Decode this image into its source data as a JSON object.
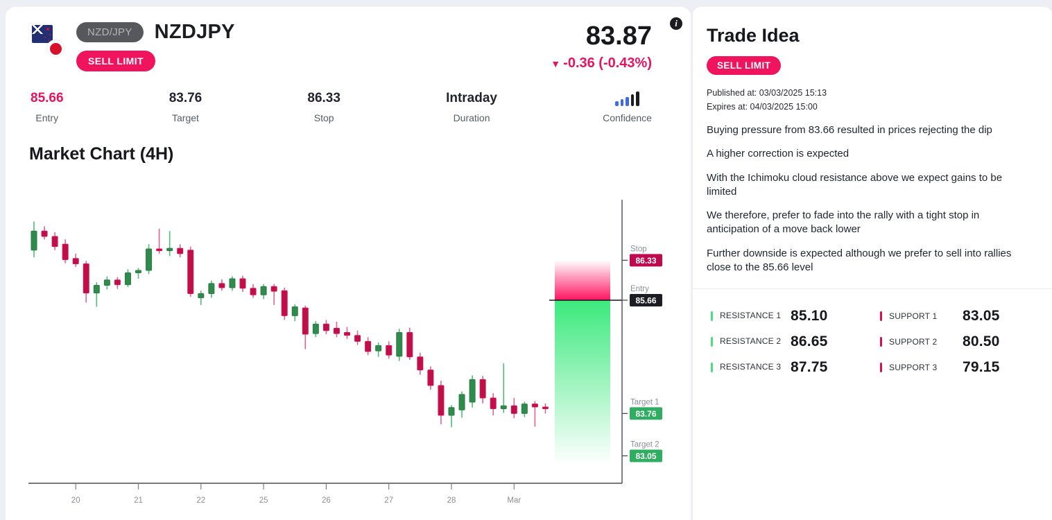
{
  "header": {
    "pair_badge": "NZD/JPY",
    "symbol": "NZDJPY",
    "order_type": "SELL LIMIT",
    "price": "83.87",
    "change_arrow": "▼",
    "change": "-0.36 (-0.43%)",
    "info_icon": "i",
    "flags": [
      "new-zealand-flag",
      "japan-flag"
    ]
  },
  "stats": [
    {
      "value": "85.66",
      "label": "Entry",
      "highlight": true
    },
    {
      "value": "83.76",
      "label": "Target"
    },
    {
      "value": "86.33",
      "label": "Stop"
    },
    {
      "value": "Intraday",
      "label": "Duration"
    },
    {
      "value": "3 of 5",
      "label": "Confidence",
      "type": "confidence",
      "bars_filled": 3,
      "bars_total": 5
    }
  ],
  "colors": {
    "accent_pink": "#f0135e",
    "entry_pink": "#e8125f",
    "stop_badge": "#bf0a4f",
    "entry_badge": "#1d1e23",
    "target_badge": "#2fae62",
    "candle_up": "#2f8a4c",
    "candle_up_stroke": "#2a7d45",
    "candle_up_wick": "#4dbd79",
    "candle_down": "#bd1048",
    "candle_down_stroke": "#d81355",
    "candle_down_wick": "#e2638d",
    "zone_pink": "#ff1462",
    "zone_green": "#3ce97d",
    "conf_blue": "#3d6be4",
    "conf_dark": "#1b1c20",
    "axis": "#484b52",
    "tick_label": "#8b8f99",
    "level_label": "#8a8f98"
  },
  "chart": {
    "title": "Market Chart (4H)",
    "levels": [
      {
        "name": "Stop",
        "value": "86.33",
        "price": 86.33,
        "badge": "stop"
      },
      {
        "name": "Entry",
        "value": "85.66",
        "price": 85.66,
        "badge": "entry"
      },
      {
        "name": "Target 1",
        "value": "83.76",
        "price": 83.76,
        "badge": "target"
      },
      {
        "name": "Target 2",
        "value": "83.05",
        "price": 83.05,
        "badge": "target"
      }
    ]
  },
  "chart_data": {
    "type": "candlestick",
    "symbol": "NZDJPY",
    "timeframe": "4H",
    "title": "Market Chart (4H)",
    "x_tick_labels": [
      "20",
      "21",
      "22",
      "25",
      "26",
      "27",
      "28",
      "Mar"
    ],
    "x_tick_candle_indices": [
      4,
      10,
      16,
      22,
      28,
      34,
      40,
      46
    ],
    "y_range": [
      83.0,
      87.4
    ],
    "grid": false,
    "annotations": {
      "stop": 86.33,
      "entry": 85.66,
      "target1": 83.76,
      "target2": 83.05
    },
    "candles_ohlc": [
      [
        86.5,
        86.98,
        86.38,
        86.82
      ],
      [
        86.82,
        86.9,
        86.68,
        86.73
      ],
      [
        86.73,
        86.8,
        86.5,
        86.56
      ],
      [
        86.6,
        86.68,
        86.28,
        86.34
      ],
      [
        86.36,
        86.44,
        86.22,
        86.27
      ],
      [
        86.27,
        86.32,
        85.62,
        85.78
      ],
      [
        85.78,
        85.96,
        85.55,
        85.91
      ],
      [
        85.91,
        86.06,
        85.84,
        86.0
      ],
      [
        86.0,
        86.05,
        85.85,
        85.92
      ],
      [
        85.92,
        86.18,
        85.88,
        86.12
      ],
      [
        86.12,
        86.2,
        86.02,
        86.16
      ],
      [
        86.16,
        86.6,
        86.1,
        86.52
      ],
      [
        86.52,
        86.86,
        86.44,
        86.49
      ],
      [
        86.49,
        86.82,
        86.4,
        86.53
      ],
      [
        86.53,
        86.6,
        86.38,
        86.44
      ],
      [
        86.5,
        86.56,
        85.72,
        85.77
      ],
      [
        85.7,
        85.82,
        85.58,
        85.77
      ],
      [
        85.77,
        85.99,
        85.7,
        85.94
      ],
      [
        85.94,
        86.01,
        85.82,
        85.87
      ],
      [
        85.87,
        86.06,
        85.82,
        86.02
      ],
      [
        86.02,
        86.07,
        85.8,
        85.86
      ],
      [
        85.86,
        85.93,
        85.7,
        85.75
      ],
      [
        85.75,
        85.93,
        85.68,
        85.89
      ],
      [
        85.89,
        85.93,
        85.58,
        85.81
      ],
      [
        85.82,
        85.87,
        85.33,
        85.4
      ],
      [
        85.4,
        85.59,
        85.31,
        85.55
      ],
      [
        85.53,
        85.57,
        84.84,
        85.09
      ],
      [
        85.1,
        85.31,
        85.04,
        85.26
      ],
      [
        85.26,
        85.33,
        85.09,
        85.15
      ],
      [
        85.19,
        85.3,
        85.04,
        85.1
      ],
      [
        85.12,
        85.21,
        85.01,
        85.07
      ],
      [
        85.07,
        85.15,
        84.91,
        84.97
      ],
      [
        84.97,
        85.04,
        84.74,
        84.8
      ],
      [
        84.81,
        84.95,
        84.71,
        84.9
      ],
      [
        84.9,
        84.97,
        84.68,
        84.74
      ],
      [
        84.72,
        85.18,
        84.64,
        85.12
      ],
      [
        85.12,
        85.2,
        84.66,
        84.71
      ],
      [
        84.71,
        84.78,
        84.41,
        84.49
      ],
      [
        84.49,
        84.55,
        84.16,
        84.23
      ],
      [
        84.23,
        84.31,
        83.58,
        83.73
      ],
      [
        83.73,
        83.9,
        83.53,
        83.86
      ],
      [
        83.82,
        84.13,
        83.69,
        84.08
      ],
      [
        83.95,
        84.4,
        83.86,
        84.33
      ],
      [
        84.33,
        84.39,
        83.93,
        84.02
      ],
      [
        84.02,
        84.1,
        83.73,
        83.84
      ],
      [
        83.84,
        84.6,
        83.77,
        83.89
      ],
      [
        83.89,
        84.02,
        83.68,
        83.76
      ],
      [
        83.76,
        83.96,
        83.7,
        83.92
      ],
      [
        83.92,
        83.97,
        83.54,
        83.87
      ],
      [
        83.87,
        83.93,
        83.76,
        83.84
      ]
    ]
  },
  "trade_idea": {
    "title": "Trade Idea",
    "order_type": "SELL LIMIT",
    "published": "Published at: 03/03/2025 15:13",
    "expires": "Expires at: 04/03/2025 15:00",
    "paragraphs": [
      "Buying pressure from 83.66 resulted in prices rejecting the dip",
      "A higher correction is expected",
      "With the Ichimoku cloud resistance above we expect gains to be limited",
      "We therefore, prefer to fade into the rally with a tight stop in anticipation of a move back lower",
      "Further downside is expected although we prefer to sell into rallies close to the 85.66 level"
    ],
    "levels": {
      "resistance": [
        {
          "label": "RESISTANCE 1",
          "value": "85.10"
        },
        {
          "label": "RESISTANCE 2",
          "value": "86.65"
        },
        {
          "label": "RESISTANCE 3",
          "value": "87.75"
        }
      ],
      "support": [
        {
          "label": "SUPPORT 1",
          "value": "83.05"
        },
        {
          "label": "SUPPORT 2",
          "value": "80.50"
        },
        {
          "label": "SUPPORT 3",
          "value": "79.15"
        }
      ]
    }
  }
}
